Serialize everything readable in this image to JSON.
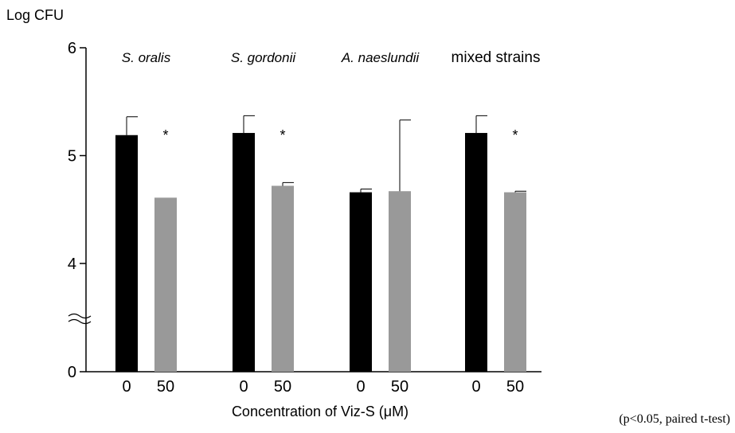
{
  "chart_data": {
    "type": "bar",
    "ylabel": "Log CFU",
    "xlabel": "Concentration of Viz-S (μM)",
    "footnote": "(p<0.05, paired t-test)",
    "y_ticks": [
      "0",
      "4",
      "5",
      "6"
    ],
    "ylim": [
      4,
      6
    ],
    "axis_break": true,
    "significance_marker": "*",
    "colors": {
      "control": "#000000",
      "treated": "#999999"
    },
    "groups": [
      {
        "label": "S. oralis",
        "italic": true,
        "bars": [
          {
            "x_label": "0",
            "value": 5.19,
            "error": 0.17
          },
          {
            "x_label": "50",
            "value": 4.61,
            "error": 0.0
          }
        ],
        "significant": true
      },
      {
        "label": "S. gordonii",
        "italic": true,
        "bars": [
          {
            "x_label": "0",
            "value": 5.21,
            "error": 0.16
          },
          {
            "x_label": "50",
            "value": 4.72,
            "error": 0.03
          }
        ],
        "significant": true
      },
      {
        "label": "A. naeslundii",
        "italic": true,
        "bars": [
          {
            "x_label": "0",
            "value": 4.66,
            "error": 0.03
          },
          {
            "x_label": "50",
            "value": 4.67,
            "error": 0.66
          }
        ],
        "significant": false
      },
      {
        "label": "mixed strains",
        "italic": false,
        "bars": [
          {
            "x_label": "0",
            "value": 5.21,
            "error": 0.16
          },
          {
            "x_label": "50",
            "value": 4.66,
            "error": 0.01
          }
        ],
        "significant": true
      }
    ]
  }
}
